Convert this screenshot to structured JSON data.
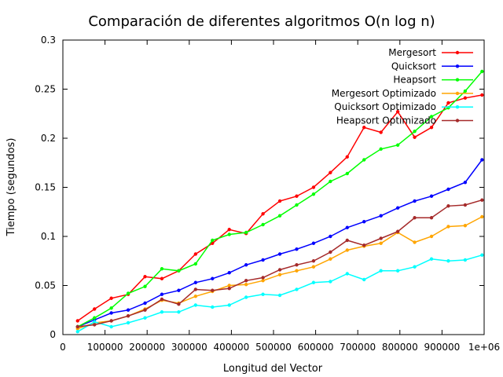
{
  "chart_data": {
    "type": "line",
    "title": "Comparación de diferentes algoritmos O(n log n)",
    "xlabel": "Longitud del Vector",
    "ylabel": "Tiempo (segundos)",
    "xlim": [
      0,
      1000000
    ],
    "ylim": [
      0,
      0.3
    ],
    "x_ticks": [
      {
        "value": 0,
        "label": "0"
      },
      {
        "value": 100000,
        "label": "100000"
      },
      {
        "value": 200000,
        "label": "200000"
      },
      {
        "value": 300000,
        "label": "300000"
      },
      {
        "value": 400000,
        "label": "400000"
      },
      {
        "value": 500000,
        "label": "500000"
      },
      {
        "value": 600000,
        "label": "600000"
      },
      {
        "value": 700000,
        "label": "700000"
      },
      {
        "value": 800000,
        "label": "800000"
      },
      {
        "value": 900000,
        "label": "900000"
      },
      {
        "value": 1000000,
        "label": "1e+06"
      }
    ],
    "y_ticks": [
      {
        "value": 0,
        "label": "0"
      },
      {
        "value": 0.05,
        "label": "0.05"
      },
      {
        "value": 0.1,
        "label": "0.1"
      },
      {
        "value": 0.15,
        "label": "0.15"
      },
      {
        "value": 0.2,
        "label": "0.2"
      },
      {
        "value": 0.25,
        "label": "0.25"
      },
      {
        "value": 0.3,
        "label": "0.3"
      }
    ],
    "grid": false,
    "legend_position": "top-right",
    "x": [
      35000,
      75000,
      115000,
      155000,
      195000,
      235000,
      275000,
      315000,
      355000,
      395000,
      435000,
      475000,
      515000,
      555000,
      595000,
      635000,
      675000,
      715000,
      755000,
      795000,
      835000,
      875000,
      915000,
      955000,
      995000
    ],
    "series": [
      {
        "name": "Mergesort",
        "color": "#ff0000",
        "values": [
          0.014,
          0.026,
          0.037,
          0.041,
          0.059,
          0.057,
          0.065,
          0.082,
          0.093,
          0.107,
          0.103,
          0.123,
          0.136,
          0.141,
          0.15,
          0.165,
          0.181,
          0.211,
          0.206,
          0.227,
          0.201,
          0.211,
          0.236,
          0.241,
          0.244
        ]
      },
      {
        "name": "Quicksort",
        "color": "#0000ff",
        "values": [
          0.008,
          0.015,
          0.022,
          0.025,
          0.032,
          0.041,
          0.045,
          0.053,
          0.057,
          0.063,
          0.071,
          0.076,
          0.082,
          0.087,
          0.093,
          0.1,
          0.109,
          0.115,
          0.121,
          0.129,
          0.136,
          0.141,
          0.148,
          0.155,
          0.178
        ]
      },
      {
        "name": "Heapsort",
        "color": "#00ff00",
        "values": [
          0.008,
          0.017,
          0.027,
          0.042,
          0.049,
          0.067,
          0.065,
          0.072,
          0.096,
          0.102,
          0.104,
          0.112,
          0.121,
          0.132,
          0.143,
          0.156,
          0.164,
          0.178,
          0.189,
          0.193,
          0.207,
          0.222,
          0.231,
          0.248,
          0.268
        ]
      },
      {
        "name": "Mergesort Optimizado",
        "color": "#ffa500",
        "values": [
          0.006,
          0.012,
          0.014,
          0.019,
          0.026,
          0.035,
          0.032,
          0.039,
          0.044,
          0.05,
          0.051,
          0.055,
          0.061,
          0.065,
          0.069,
          0.077,
          0.086,
          0.09,
          0.093,
          0.104,
          0.094,
          0.1,
          0.11,
          0.111,
          0.12
        ]
      },
      {
        "name": "Quicksort Optimizado",
        "color": "#00ffff",
        "values": [
          0.003,
          0.013,
          0.008,
          0.012,
          0.017,
          0.023,
          0.023,
          0.03,
          0.028,
          0.03,
          0.038,
          0.041,
          0.04,
          0.046,
          0.053,
          0.054,
          0.062,
          0.056,
          0.065,
          0.065,
          0.069,
          0.077,
          0.075,
          0.076,
          0.081
        ]
      },
      {
        "name": "Heapsort Optimizado",
        "color": "#a52a2a",
        "values": [
          0.008,
          0.01,
          0.014,
          0.019,
          0.025,
          0.036,
          0.031,
          0.046,
          0.045,
          0.047,
          0.055,
          0.058,
          0.066,
          0.071,
          0.075,
          0.084,
          0.096,
          0.091,
          0.098,
          0.105,
          0.119,
          0.119,
          0.131,
          0.132,
          0.137
        ]
      }
    ]
  }
}
